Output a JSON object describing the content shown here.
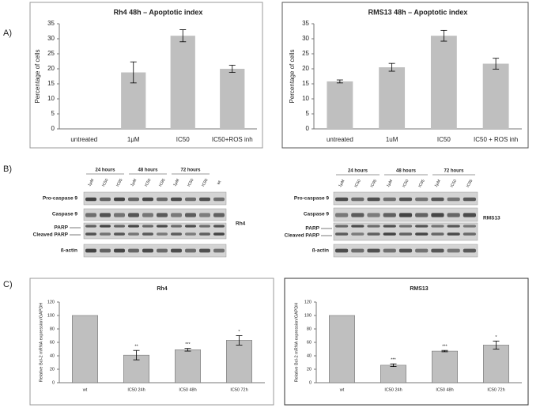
{
  "panels": [
    "A)",
    "B)",
    "C)"
  ],
  "chart_data": [
    {
      "type": "bar",
      "title": "Rh4 48h – Apoptotic index",
      "ylabel": "Percentage of cells",
      "categories": [
        "untreated",
        "1μM",
        "IC50",
        "IC50+ROS inh"
      ],
      "values": [
        0,
        18.8,
        31,
        20
      ],
      "errors": [
        null,
        3.5,
        2,
        1.2
      ],
      "color": "#bfbfbf",
      "ylim": [
        0,
        35
      ],
      "yticks": [
        0,
        5,
        10,
        15,
        20,
        25,
        30,
        35
      ]
    },
    {
      "type": "bar",
      "title": "RMS13 48h – Apoptotic index",
      "ylabel": "Percentage of cells",
      "categories": [
        "untreated",
        "1uM",
        "IC50",
        "IC50 + ROS inh"
      ],
      "values": [
        15.8,
        20.5,
        31,
        21.7
      ],
      "errors": [
        0.5,
        1.3,
        1.8,
        1.8
      ],
      "color": "#bfbfbf",
      "ylim": [
        0,
        35
      ],
      "yticks": [
        0,
        5,
        10,
        15,
        20,
        25,
        30,
        35
      ]
    },
    {
      "type": "bar",
      "title": "Rh4",
      "ylabel": "Relative Bcl-2 mRNA expression/GAPDH",
      "categories": [
        "wt",
        "IC50 24h",
        "IC50 48h",
        "IC50 72h"
      ],
      "values": [
        100,
        41,
        49,
        63
      ],
      "errors": [
        null,
        7,
        2,
        7
      ],
      "annotations": [
        null,
        "**",
        "***",
        "*"
      ],
      "color": "#bfbfbf",
      "ylim": [
        0,
        120
      ],
      "yticks": [
        0,
        20,
        40,
        60,
        80,
        100,
        120
      ]
    },
    {
      "type": "bar",
      "title": "RMS13",
      "ylabel": "Relative Bcl-2 mRNA expression/GAPDH",
      "categories": [
        "wt",
        "IC50 24h",
        "IC50 48h",
        "IC50 72h"
      ],
      "values": [
        100,
        26,
        47,
        56
      ],
      "errors": [
        null,
        2,
        1,
        6
      ],
      "annotations": [
        null,
        "***",
        "***",
        "*"
      ],
      "color": "#bfbfbf",
      "ylim": [
        0,
        120
      ],
      "yticks": [
        0,
        20,
        40,
        60,
        80,
        100,
        120
      ]
    }
  ],
  "blots": [
    {
      "cell": "Rh4",
      "times": [
        "24 hours",
        "48 hours",
        "72 hours"
      ],
      "lanes": [
        "1μM",
        "IC50",
        "IC95",
        "1μM",
        "IC50",
        "IC95",
        "1μM",
        "IC50",
        "IC95",
        "wt"
      ],
      "rows": [
        "Pro-caspase 9",
        "Caspase 9",
        "PARP",
        "Cleaved PARP",
        "ß-actin"
      ]
    },
    {
      "cell": "RMS13",
      "times": [
        "24 hours",
        "48 hours",
        "72 hours"
      ],
      "lanes": [
        "1μM",
        "IC50",
        "IC95",
        "1μM",
        "IC50",
        "IC95",
        "1μM",
        "IC50",
        "IC95"
      ],
      "rows": [
        "Pro-caspase 9",
        "Caspase 9",
        "PARP",
        "Cleaved PARP",
        "ß-actin"
      ]
    }
  ]
}
